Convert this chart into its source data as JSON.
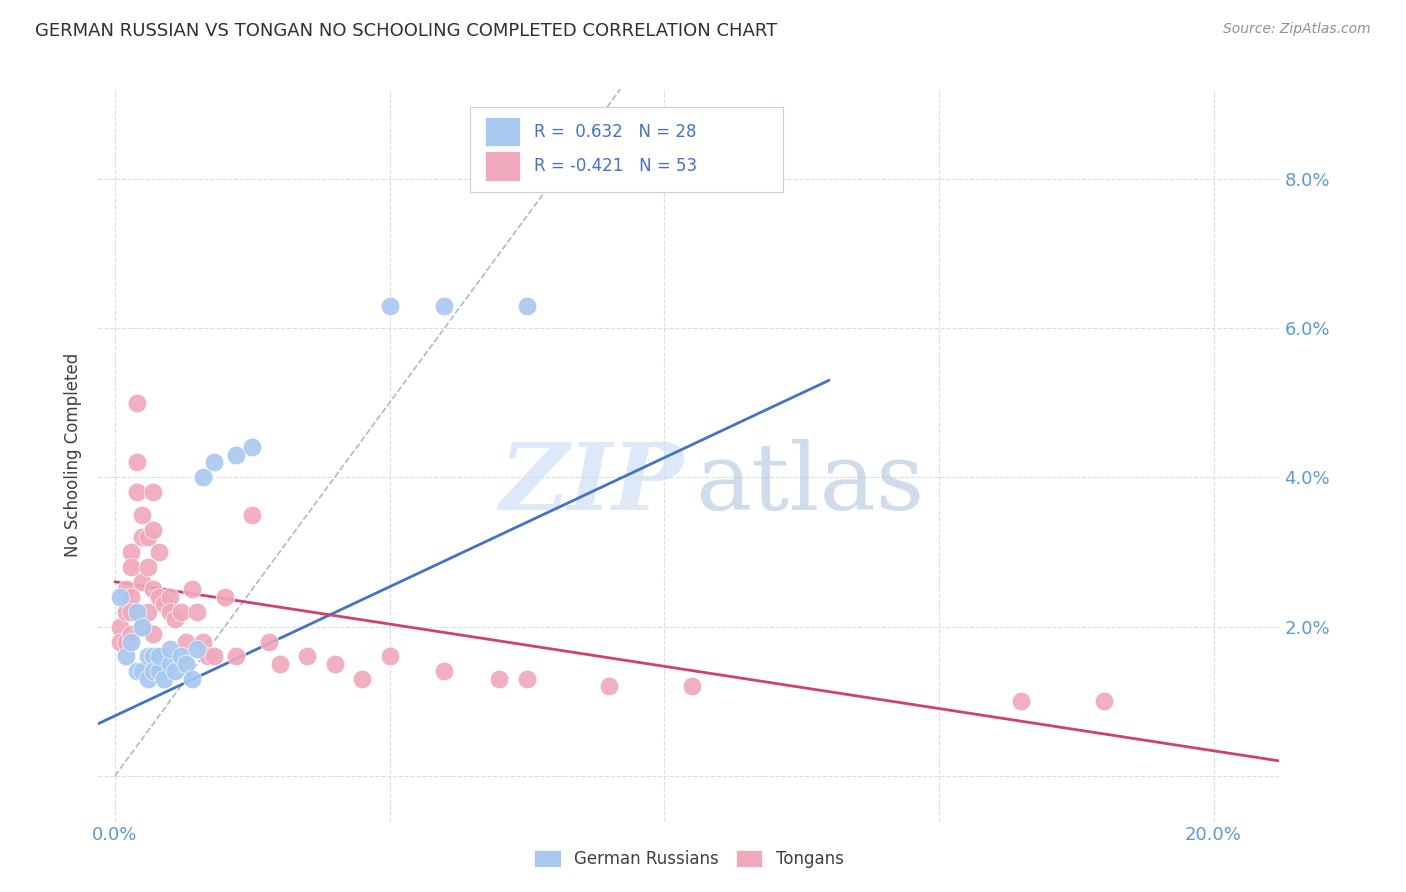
{
  "title": "GERMAN RUSSIAN VS TONGAN NO SCHOOLING COMPLETED CORRELATION CHART",
  "source": "Source: ZipAtlas.com",
  "ylabel": "No Schooling Completed",
  "blue_color": "#a8c8f0",
  "pink_color": "#f0a8bc",
  "blue_line_color": "#4472c4",
  "pink_line_color": "#d04070",
  "diagonal_color": "#b0b8c8",
  "background_color": "#ffffff",
  "grid_color": "#d8dde8",
  "title_color": "#303030",
  "axis_label_color": "#5b9bd5",
  "right_axis_color": "#5b9bd5",
  "xlim": [
    -0.003,
    0.212
  ],
  "ylim": [
    -0.006,
    0.092
  ],
  "x_ticks": [
    0.0,
    0.05,
    0.1,
    0.15,
    0.2
  ],
  "y_ticks": [
    0.0,
    0.02,
    0.04,
    0.06,
    0.08
  ],
  "x_tick_labels": [
    "0.0%",
    "",
    "",
    "",
    "20.0%"
  ],
  "y_tick_labels_left": [
    "",
    "",
    "",
    "",
    ""
  ],
  "y_tick_labels_right": [
    "",
    "2.0%",
    "4.0%",
    "6.0%",
    "8.0%"
  ],
  "blue_scatter": [
    [
      0.001,
      0.024
    ],
    [
      0.002,
      0.016
    ],
    [
      0.003,
      0.018
    ],
    [
      0.004,
      0.014
    ],
    [
      0.004,
      0.022
    ],
    [
      0.005,
      0.014
    ],
    [
      0.005,
      0.02
    ],
    [
      0.006,
      0.016
    ],
    [
      0.006,
      0.013
    ],
    [
      0.007,
      0.016
    ],
    [
      0.007,
      0.014
    ],
    [
      0.008,
      0.014
    ],
    [
      0.008,
      0.016
    ],
    [
      0.009,
      0.013
    ],
    [
      0.01,
      0.015
    ],
    [
      0.01,
      0.017
    ],
    [
      0.011,
      0.014
    ],
    [
      0.012,
      0.016
    ],
    [
      0.013,
      0.015
    ],
    [
      0.014,
      0.013
    ],
    [
      0.015,
      0.017
    ],
    [
      0.016,
      0.04
    ],
    [
      0.018,
      0.042
    ],
    [
      0.022,
      0.043
    ],
    [
      0.025,
      0.044
    ],
    [
      0.06,
      0.063
    ],
    [
      0.075,
      0.063
    ],
    [
      0.05,
      0.063
    ]
  ],
  "pink_scatter": [
    [
      0.001,
      0.02
    ],
    [
      0.001,
      0.018
    ],
    [
      0.002,
      0.025
    ],
    [
      0.002,
      0.022
    ],
    [
      0.002,
      0.018
    ],
    [
      0.003,
      0.03
    ],
    [
      0.003,
      0.028
    ],
    [
      0.003,
      0.024
    ],
    [
      0.003,
      0.022
    ],
    [
      0.003,
      0.019
    ],
    [
      0.004,
      0.05
    ],
    [
      0.004,
      0.042
    ],
    [
      0.004,
      0.038
    ],
    [
      0.005,
      0.035
    ],
    [
      0.005,
      0.032
    ],
    [
      0.005,
      0.026
    ],
    [
      0.005,
      0.02
    ],
    [
      0.006,
      0.032
    ],
    [
      0.006,
      0.028
    ],
    [
      0.006,
      0.022
    ],
    [
      0.007,
      0.038
    ],
    [
      0.007,
      0.033
    ],
    [
      0.007,
      0.025
    ],
    [
      0.007,
      0.019
    ],
    [
      0.008,
      0.03
    ],
    [
      0.008,
      0.024
    ],
    [
      0.009,
      0.023
    ],
    [
      0.01,
      0.024
    ],
    [
      0.01,
      0.022
    ],
    [
      0.011,
      0.021
    ],
    [
      0.012,
      0.022
    ],
    [
      0.013,
      0.018
    ],
    [
      0.014,
      0.025
    ],
    [
      0.015,
      0.022
    ],
    [
      0.016,
      0.018
    ],
    [
      0.017,
      0.016
    ],
    [
      0.018,
      0.016
    ],
    [
      0.02,
      0.024
    ],
    [
      0.022,
      0.016
    ],
    [
      0.025,
      0.035
    ],
    [
      0.028,
      0.018
    ],
    [
      0.03,
      0.015
    ],
    [
      0.035,
      0.016
    ],
    [
      0.04,
      0.015
    ],
    [
      0.045,
      0.013
    ],
    [
      0.05,
      0.016
    ],
    [
      0.06,
      0.014
    ],
    [
      0.07,
      0.013
    ],
    [
      0.075,
      0.013
    ],
    [
      0.09,
      0.012
    ],
    [
      0.105,
      0.012
    ],
    [
      0.165,
      0.01
    ],
    [
      0.18,
      0.01
    ]
  ],
  "blue_line_x": [
    -0.003,
    0.13
  ],
  "blue_line_y": [
    0.007,
    0.053
  ],
  "pink_line_x": [
    0.0,
    0.212
  ],
  "pink_line_y": [
    0.026,
    0.002
  ],
  "diag_line_x": [
    0.0,
    0.092
  ],
  "diag_line_y": [
    0.0,
    0.092
  ],
  "legend_r_blue": "R =  0.632   N = 28",
  "legend_r_pink": "R = -0.421   N = 53"
}
